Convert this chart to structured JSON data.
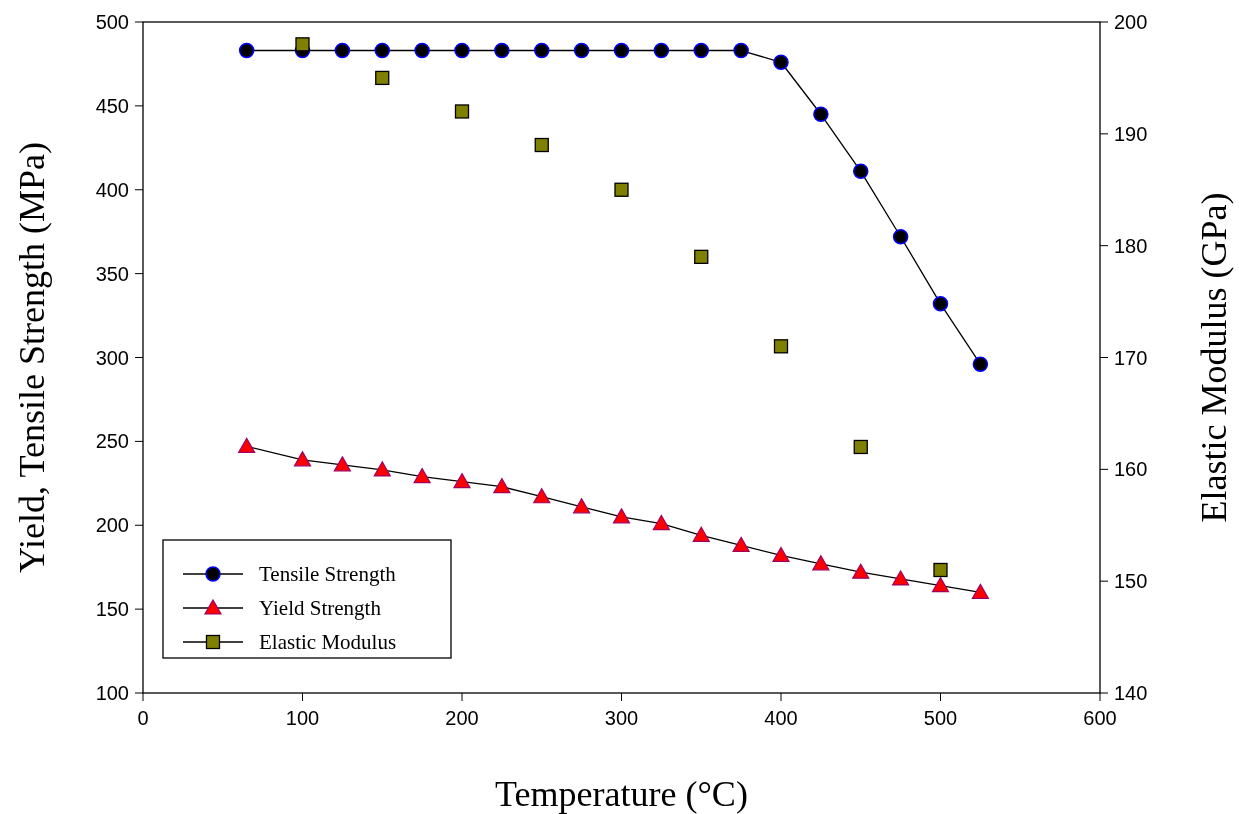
{
  "chart_data": {
    "type": "line",
    "xlabel": "Temperature (°C)",
    "ylabel": "Yield, Tensile Strength (MPa)",
    "y2label": "Elastic Modulus (GPa)",
    "xlim": [
      0,
      600
    ],
    "xticks": [
      0,
      100,
      200,
      300,
      400,
      500,
      600
    ],
    "ylim": [
      100,
      500
    ],
    "yticks": [
      100,
      150,
      200,
      250,
      300,
      350,
      400,
      450,
      500
    ],
    "y2lim": [
      140,
      200
    ],
    "y2ticks": [
      140,
      150,
      160,
      170,
      180,
      190,
      200
    ],
    "grid": false,
    "legend": "bottom left",
    "line_style": "solid",
    "series": [
      {
        "name": "Tensile Strength",
        "marker": "circle",
        "color": "#000000",
        "x": [
          65,
          100,
          125,
          150,
          175,
          200,
          225,
          250,
          275,
          300,
          325,
          350,
          375,
          400,
          425,
          450,
          475,
          500,
          525
        ],
        "values": [
          483,
          483,
          483,
          483,
          483,
          483,
          483,
          483,
          483,
          483,
          483,
          483,
          483,
          476,
          445,
          411,
          372,
          332,
          296
        ]
      },
      {
        "name": "Yield Strength",
        "marker": "triangle",
        "color": "#ff0000",
        "x": [
          65,
          100,
          125,
          150,
          175,
          200,
          225,
          250,
          275,
          300,
          325,
          350,
          375,
          400,
          425,
          450,
          475,
          500,
          525
        ],
        "values": [
          247,
          239,
          236,
          233,
          229,
          226,
          223,
          217,
          211,
          205,
          201,
          194,
          188,
          182,
          177,
          172,
          168,
          164,
          160
        ]
      },
      {
        "name": "Elastic Modulus",
        "type": "scatter",
        "marker": "square",
        "axis": "y2",
        "color": "#808000",
        "x": [
          100,
          150,
          200,
          250,
          300,
          350,
          400,
          450,
          500
        ],
        "values": [
          198,
          195,
          192,
          189,
          185,
          179,
          171,
          162,
          151
        ]
      }
    ]
  }
}
